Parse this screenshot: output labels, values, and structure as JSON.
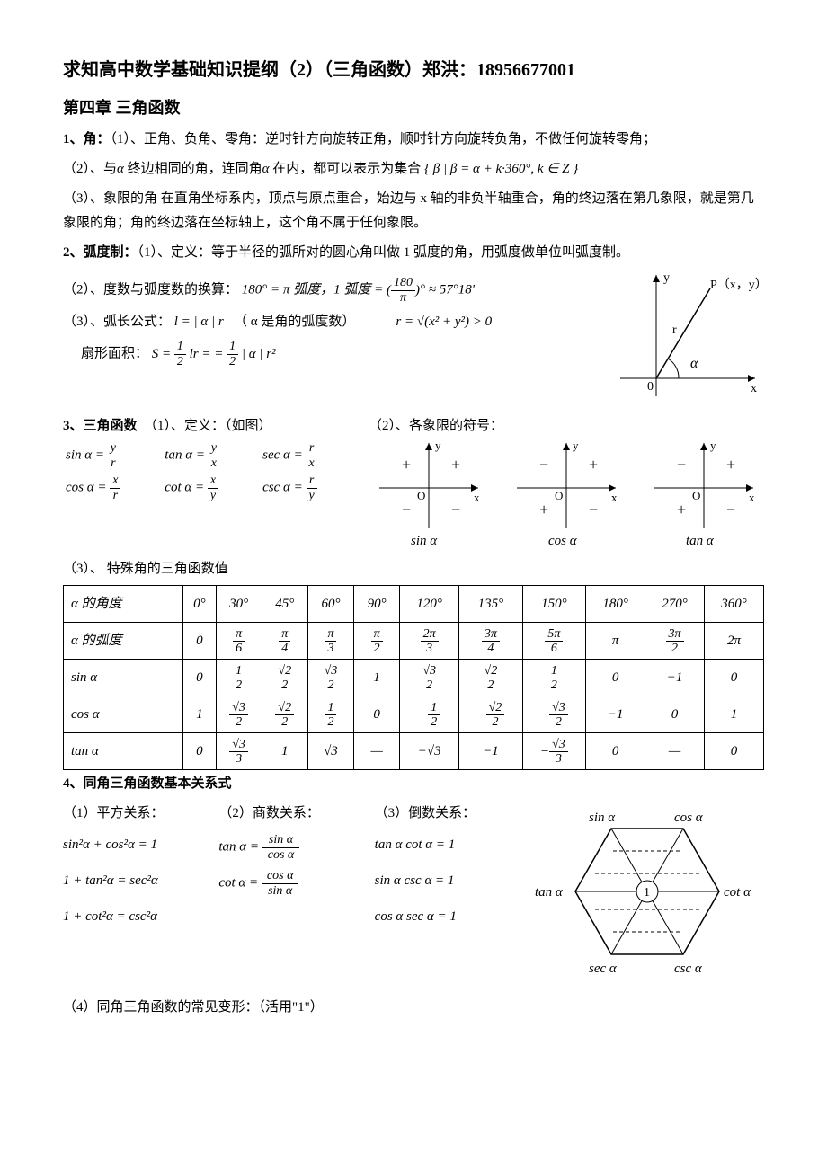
{
  "title": "求知高中数学基础知识提纲（2）（三角函数）郑洪：18956677001",
  "chapter": "第四章  三角函数",
  "s1": {
    "lead": "1、角：",
    "p1": "（1）、正角、负角、零角：逆时针方向旋转正角，顺时针方向旋转负角，不做任何旋转零角；",
    "p2a": "（2）、与",
    "p2b": "终边相同的角，连同角",
    "p2c": "在内，都可以表示为集合",
    "p2set": "{ β | β = α + k·360°, k ∈ Z }",
    "p3": "（3）、象限的角 在直角坐标系内，顶点与原点重合，始边与 x 轴的非负半轴重合，角的终边落在第几象限，就是第几象限的角；角的终边落在坐标轴上，这个角不属于任何象限。"
  },
  "s2": {
    "lead": "2、弧度制：",
    "p1": "（1）、定义：等于半径的弧所对的圆心角叫做 1 弧度的角，用弧度做单位叫弧度制。",
    "p2a": "（2）、度数与弧度数的换算：",
    "p2b": "180° = π 弧度，1 弧度 = ",
    "p2c": "° ≈ 57°18′",
    "p3a": "（3）、弧长公式：",
    "p3b": "l = | α | r",
    "p3c": "（ α 是角的弧度数）",
    "rformula": "r = √(x² + y²) > 0",
    "area_a": "扇形面积：",
    "area_b": "S = ",
    "area_c": " lr = = ",
    "area_d": " | α | r²",
    "diag": {
      "P": "P（x，y）",
      "r": "r",
      "alpha": "α",
      "O": "0",
      "xlabel": "x",
      "ylabel": "y"
    }
  },
  "s3": {
    "lead": "3、三角函数",
    "p1": "（1）、定义：（如图）",
    "p2": "（2）、各象限的符号：",
    "defs": {
      "sin": "sin α = ",
      "sin_frac_n": "y",
      "sin_frac_d": "r",
      "cos": "cos α = ",
      "cos_frac_n": "x",
      "cos_frac_d": "r",
      "tan": "tan α = ",
      "tan_frac_n": "y",
      "tan_frac_d": "x",
      "cot": "cot α = ",
      "cot_frac_n": "x",
      "cot_frac_d": "y",
      "sec": "sec α = ",
      "sec_frac_n": "r",
      "sec_frac_d": "x",
      "csc": "csc α = ",
      "csc_frac_n": "r",
      "csc_frac_d": "y"
    },
    "signs": {
      "labels": [
        "sin α",
        "cos α",
        "tan α"
      ],
      "grids": [
        [
          "+",
          "+",
          "−",
          "−"
        ],
        [
          "−",
          "+",
          "+",
          "−"
        ],
        [
          "−",
          "+",
          "+",
          "−"
        ]
      ],
      "O": "O",
      "x": "x",
      "y": "y"
    },
    "p3": "（3）、 特殊角的三角函数值"
  },
  "table": {
    "row_headers": [
      "α 的角度",
      "α 的弧度",
      "sin α",
      "cos α",
      "tan α"
    ],
    "angles": [
      "0°",
      "30°",
      "45°",
      "60°",
      "90°",
      "120°",
      "135°",
      "150°",
      "180°",
      "270°",
      "360°"
    ],
    "radians": [
      "0",
      "π/6",
      "π/4",
      "π/3",
      "π/2",
      "2π/3",
      "3π/4",
      "5π/6",
      "π",
      "3π/2",
      "2π"
    ],
    "sin": [
      "0",
      "1/2",
      "√2/2",
      "√3/2",
      "1",
      "√3/2",
      "√2/2",
      "1/2",
      "0",
      "−1",
      "0"
    ],
    "cos": [
      "1",
      "√3/2",
      "√2/2",
      "1/2",
      "0",
      "−1/2",
      "−√2/2",
      "−√3/2",
      "−1",
      "0",
      "1"
    ],
    "tan": [
      "0",
      "√3/3",
      "1",
      "√3",
      "—",
      "−√3",
      "−1",
      "−√3/3",
      "0",
      "—",
      "0"
    ]
  },
  "s4": {
    "lead": "4、同角三角函数基本关系式",
    "h1": "（1）平方关系：",
    "h2": "（2）商数关系：",
    "h3": "（3）倒数关系：",
    "eq1": "sin²α + cos²α = 1",
    "eq2a": "tan α = ",
    "eq2b_n": "sin α",
    "eq2b_d": "cos α",
    "eq3": "tan α cot α = 1",
    "eq4": "1 + tan²α = sec²α",
    "eq5a": "cot α = ",
    "eq5b_n": "cos α",
    "eq5b_d": "sin α",
    "eq6": "sin α csc α = 1",
    "eq7": "1 + cot²α = csc²α",
    "eq8": "cos α sec α = 1",
    "hex": {
      "sin": "sin α",
      "cos": "cos α",
      "tan": "tan α",
      "cot": "cot α",
      "sec": "sec α",
      "csc": "csc α",
      "one": "1"
    },
    "p4": "（4）同角三角函数的常见变形：（活用\"1\"）"
  }
}
